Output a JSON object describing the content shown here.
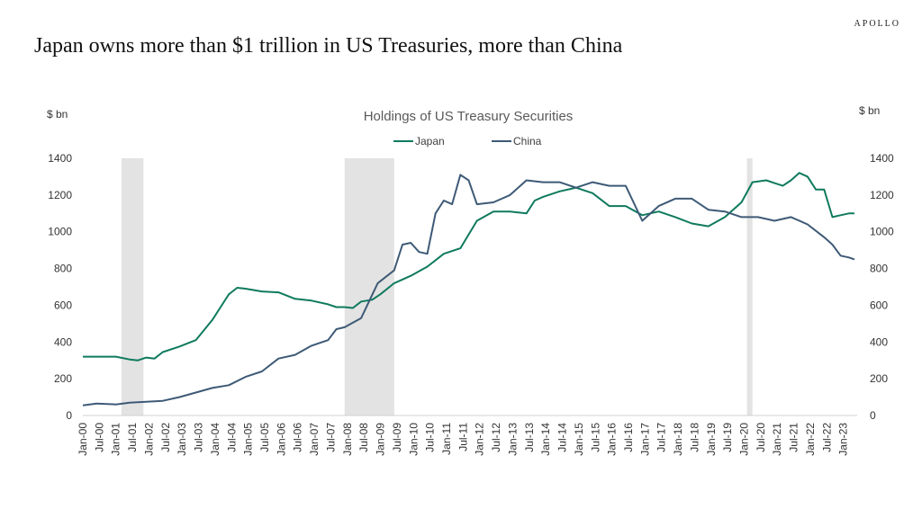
{
  "brand": "APOLLO",
  "headline": "Japan owns more than $1 trillion in US Treasuries, more than China",
  "chart_data": {
    "type": "line",
    "title": "Holdings of US Treasury Securities",
    "ylabel_left": "$ bn",
    "ylabel_right": "$ bn",
    "ylim": [
      0,
      1400
    ],
    "yticks": [
      0,
      200,
      400,
      600,
      800,
      1000,
      1200,
      1400
    ],
    "xlim": [
      "2000-01",
      "2023-06"
    ],
    "xtick_labels": [
      "Jan-00",
      "Jul-00",
      "Jan-01",
      "Jul-01",
      "Jan-02",
      "Jul-02",
      "Jan-03",
      "Jul-03",
      "Jan-04",
      "Jul-04",
      "Jan-05",
      "Jul-05",
      "Jan-06",
      "Jul-06",
      "Jan-07",
      "Jul-07",
      "Jan-08",
      "Jul-08",
      "Jan-09",
      "Jul-09",
      "Jan-10",
      "Jul-10",
      "Jan-11",
      "Jul-11",
      "Jan-12",
      "Jul-12",
      "Jan-13",
      "Jul-13",
      "Jan-14",
      "Jul-14",
      "Jan-15",
      "Jul-15",
      "Jan-16",
      "Jul-16",
      "Jan-17",
      "Jul-17",
      "Jan-18",
      "Jul-18",
      "Jan-19",
      "Jul-19",
      "Jan-20",
      "Jul-20",
      "Jan-21",
      "Jul-21",
      "Jan-22",
      "Jul-22",
      "Jan-23"
    ],
    "legend_position": "top-center",
    "recessions": [
      [
        "2001-03",
        "2001-11"
      ],
      [
        "2007-12",
        "2009-06"
      ],
      [
        "2020-02",
        "2020-04"
      ]
    ],
    "series": [
      {
        "name": "Japan",
        "color": "#0f7a5e",
        "points": [
          [
            "2000-01",
            320
          ],
          [
            "2000-06",
            320
          ],
          [
            "2001-01",
            320
          ],
          [
            "2001-06",
            305
          ],
          [
            "2001-09",
            300
          ],
          [
            "2001-12",
            315
          ],
          [
            "2002-03",
            310
          ],
          [
            "2002-06",
            345
          ],
          [
            "2002-12",
            375
          ],
          [
            "2003-06",
            410
          ],
          [
            "2003-12",
            520
          ],
          [
            "2004-03",
            590
          ],
          [
            "2004-06",
            660
          ],
          [
            "2004-09",
            695
          ],
          [
            "2004-12",
            690
          ],
          [
            "2005-06",
            675
          ],
          [
            "2005-12",
            670
          ],
          [
            "2006-06",
            635
          ],
          [
            "2006-12",
            625
          ],
          [
            "2007-06",
            605
          ],
          [
            "2007-09",
            590
          ],
          [
            "2007-12",
            590
          ],
          [
            "2008-03",
            585
          ],
          [
            "2008-06",
            620
          ],
          [
            "2008-10",
            630
          ],
          [
            "2009-01",
            660
          ],
          [
            "2009-06",
            720
          ],
          [
            "2009-12",
            760
          ],
          [
            "2010-06",
            810
          ],
          [
            "2010-12",
            880
          ],
          [
            "2011-06",
            910
          ],
          [
            "2011-12",
            1060
          ],
          [
            "2012-06",
            1110
          ],
          [
            "2012-12",
            1110
          ],
          [
            "2013-06",
            1100
          ],
          [
            "2013-09",
            1170
          ],
          [
            "2013-12",
            1190
          ],
          [
            "2014-06",
            1220
          ],
          [
            "2014-12",
            1240
          ],
          [
            "2015-06",
            1210
          ],
          [
            "2015-12",
            1140
          ],
          [
            "2016-06",
            1140
          ],
          [
            "2016-12",
            1090
          ],
          [
            "2017-06",
            1110
          ],
          [
            "2017-12",
            1080
          ],
          [
            "2018-06",
            1045
          ],
          [
            "2018-12",
            1030
          ],
          [
            "2019-06",
            1080
          ],
          [
            "2019-12",
            1160
          ],
          [
            "2020-04",
            1270
          ],
          [
            "2020-09",
            1280
          ],
          [
            "2020-12",
            1265
          ],
          [
            "2021-03",
            1250
          ],
          [
            "2021-06",
            1280
          ],
          [
            "2021-09",
            1320
          ],
          [
            "2021-12",
            1300
          ],
          [
            "2022-03",
            1230
          ],
          [
            "2022-06",
            1230
          ],
          [
            "2022-09",
            1080
          ],
          [
            "2022-12",
            1090
          ],
          [
            "2023-03",
            1100
          ],
          [
            "2023-05",
            1100
          ]
        ]
      },
      {
        "name": "China",
        "color": "#3e5a76",
        "points": [
          [
            "2000-01",
            55
          ],
          [
            "2000-06",
            65
          ],
          [
            "2001-01",
            60
          ],
          [
            "2001-06",
            70
          ],
          [
            "2001-12",
            75
          ],
          [
            "2002-06",
            80
          ],
          [
            "2002-12",
            100
          ],
          [
            "2003-06",
            125
          ],
          [
            "2003-12",
            150
          ],
          [
            "2004-06",
            165
          ],
          [
            "2004-12",
            210
          ],
          [
            "2005-06",
            240
          ],
          [
            "2005-12",
            310
          ],
          [
            "2006-06",
            330
          ],
          [
            "2006-12",
            380
          ],
          [
            "2007-06",
            410
          ],
          [
            "2007-09",
            470
          ],
          [
            "2007-12",
            480
          ],
          [
            "2008-06",
            530
          ],
          [
            "2008-12",
            720
          ],
          [
            "2009-06",
            790
          ],
          [
            "2009-09",
            930
          ],
          [
            "2009-12",
            940
          ],
          [
            "2010-03",
            890
          ],
          [
            "2010-06",
            880
          ],
          [
            "2010-09",
            1100
          ],
          [
            "2010-12",
            1170
          ],
          [
            "2011-03",
            1150
          ],
          [
            "2011-06",
            1310
          ],
          [
            "2011-09",
            1280
          ],
          [
            "2011-12",
            1150
          ],
          [
            "2012-06",
            1160
          ],
          [
            "2012-12",
            1200
          ],
          [
            "2013-06",
            1280
          ],
          [
            "2013-12",
            1270
          ],
          [
            "2014-06",
            1270
          ],
          [
            "2014-12",
            1240
          ],
          [
            "2015-06",
            1270
          ],
          [
            "2015-12",
            1250
          ],
          [
            "2016-06",
            1250
          ],
          [
            "2016-12",
            1060
          ],
          [
            "2017-06",
            1140
          ],
          [
            "2017-12",
            1180
          ],
          [
            "2018-06",
            1180
          ],
          [
            "2018-12",
            1120
          ],
          [
            "2019-06",
            1110
          ],
          [
            "2019-12",
            1080
          ],
          [
            "2020-06",
            1080
          ],
          [
            "2020-12",
            1060
          ],
          [
            "2021-06",
            1080
          ],
          [
            "2021-12",
            1040
          ],
          [
            "2022-06",
            970
          ],
          [
            "2022-09",
            930
          ],
          [
            "2022-12",
            870
          ],
          [
            "2023-03",
            860
          ],
          [
            "2023-05",
            850
          ]
        ]
      }
    ]
  }
}
